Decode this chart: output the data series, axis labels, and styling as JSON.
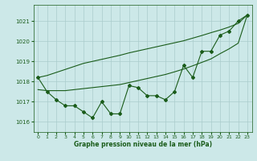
{
  "background_color": "#cce8e8",
  "grid_color": "#aacccc",
  "line_color": "#1a5c1a",
  "xlabel": "Graphe pression niveau de la mer (hPa)",
  "ylim": [
    1015.5,
    1021.8
  ],
  "xlim": [
    -0.5,
    23.5
  ],
  "yticks": [
    1016,
    1017,
    1018,
    1019,
    1020,
    1021
  ],
  "xticks": [
    0,
    1,
    2,
    3,
    4,
    5,
    6,
    7,
    8,
    9,
    10,
    11,
    12,
    13,
    14,
    15,
    16,
    17,
    18,
    19,
    20,
    21,
    22,
    23
  ],
  "main_series": [
    1018.2,
    1017.5,
    1017.1,
    1016.8,
    1016.8,
    1016.5,
    1016.2,
    1017.0,
    1016.4,
    1016.4,
    1017.8,
    1017.7,
    1017.3,
    1017.3,
    1017.1,
    1017.5,
    1018.8,
    1018.2,
    1019.5,
    1019.5,
    1020.3,
    1020.5,
    1021.0,
    1021.3
  ],
  "line_upper": [
    1018.2,
    1018.3,
    1018.45,
    1018.6,
    1018.75,
    1018.9,
    1019.0,
    1019.1,
    1019.2,
    1019.3,
    1019.42,
    1019.52,
    1019.62,
    1019.72,
    1019.82,
    1019.92,
    1020.02,
    1020.15,
    1020.28,
    1020.42,
    1020.55,
    1020.7,
    1020.88,
    1021.3
  ],
  "line_lower": [
    1017.6,
    1017.55,
    1017.55,
    1017.55,
    1017.6,
    1017.65,
    1017.7,
    1017.75,
    1017.8,
    1017.85,
    1017.95,
    1018.05,
    1018.15,
    1018.25,
    1018.35,
    1018.48,
    1018.62,
    1018.78,
    1018.95,
    1019.12,
    1019.38,
    1019.62,
    1019.9,
    1021.3
  ],
  "marker": "D",
  "markersize": 2.0,
  "linewidth": 0.8
}
